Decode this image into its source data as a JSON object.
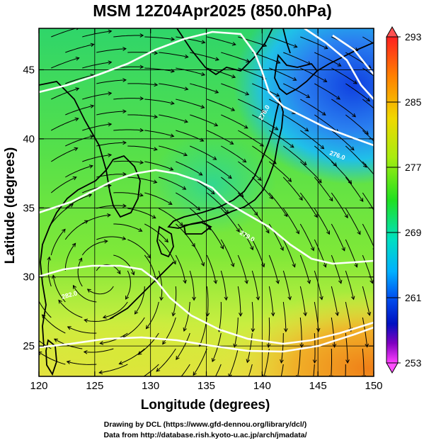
{
  "title": "MSM 12Z04Apr2025 (850.0hPa)",
  "xlabel": "Longitude (degrees)",
  "ylabel": "Latitude  (degrees)",
  "x_ticks": [
    "120",
    "125",
    "130",
    "135",
    "140",
    "145",
    "150"
  ],
  "y_ticks": [
    "25",
    "30",
    "35",
    "40",
    "45"
  ],
  "colorbar": {
    "ticks": [
      "293",
      "285",
      "277",
      "269",
      "261",
      "253"
    ],
    "colors": [
      "#ff0000",
      "#ff6000",
      "#ffb000",
      "#ffff00",
      "#a0f000",
      "#30e030",
      "#00e0b0",
      "#00c0ff",
      "#0060ff",
      "#0000c0",
      "#6000c0",
      "#c000c0",
      "#ff40ff"
    ]
  },
  "contour_labels": [
    "276.0",
    "276.0",
    "279.0",
    "282.0"
  ],
  "credits": {
    "line1": "Drawing by DCL (https://www.gfd-dennou.org/library/dcl/)",
    "line2": "Data from http://database.rish.kyoto-u.ac.jp/arch/jmadata/"
  }
}
